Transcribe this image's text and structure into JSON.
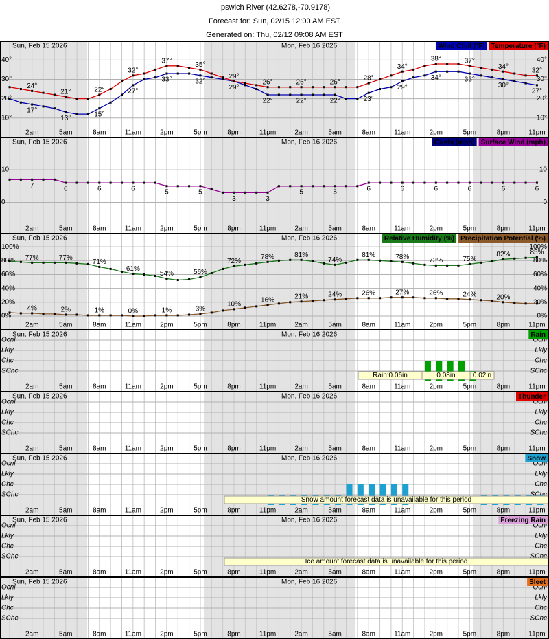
{
  "header": {
    "title": "Ipswich River (42.6278,-70.9178)",
    "forecast_for": "Forecast for: Sun, 02/15 12:00 AM EST",
    "generated_on": "Generated on: Thu, 02/12 09:08 AM EST"
  },
  "time_axis": {
    "days": [
      "Sun, Feb 15 2026",
      "Mon, Feb 16 2026"
    ],
    "categories": [
      null,
      null,
      "2am",
      null,
      null,
      "5am",
      null,
      null,
      "8am",
      null,
      null,
      "11am",
      null,
      null,
      "2pm",
      null,
      null,
      "5pm",
      null,
      null,
      "8pm",
      null,
      null,
      "11pm",
      null,
      null,
      "2am",
      null,
      null,
      "5am",
      null,
      null,
      "8am",
      null,
      null,
      "11am",
      null,
      null,
      "2pm",
      null,
      null,
      "5pm",
      null,
      null,
      "8pm",
      null,
      null,
      "11pm"
    ]
  },
  "chart_data": [
    {
      "type": "line",
      "ylim": [
        6,
        49
      ],
      "yticks": [
        {
          "value": 10,
          "label": "10°"
        },
        {
          "value": 20,
          "label": "20°"
        },
        {
          "value": 30,
          "label": "30°"
        },
        {
          "value": 40,
          "label": "40°"
        }
      ],
      "series": [
        {
          "name": "Wind Chill (°F)",
          "color": "#0000b4",
          "values": [
            20,
            18,
            17,
            16,
            15,
            13,
            12,
            12,
            15,
            18,
            22,
            27,
            30,
            31,
            33,
            33,
            33,
            32,
            31,
            30,
            29,
            27,
            25,
            22,
            22,
            22,
            22,
            22,
            22,
            22,
            20,
            20,
            23,
            25,
            26,
            29,
            31,
            32,
            34,
            34,
            34,
            33,
            32,
            31,
            30,
            29,
            28,
            27
          ],
          "value_labels": [
            null,
            null,
            "17°",
            null,
            null,
            "13°",
            null,
            null,
            "15°",
            null,
            null,
            "27°",
            null,
            null,
            "33°",
            null,
            null,
            "32°",
            null,
            null,
            "29°",
            null,
            null,
            "22°",
            null,
            null,
            "22°",
            null,
            null,
            "22°",
            null,
            null,
            "23°",
            null,
            null,
            "29°",
            null,
            null,
            "34°",
            null,
            null,
            "33°",
            null,
            null,
            "30°",
            null,
            null,
            "27°"
          ]
        },
        {
          "name": "Temperature (°F)",
          "color": "#e00000",
          "values": [
            26,
            25,
            24,
            23,
            22,
            21,
            20,
            20,
            22,
            25,
            29,
            32,
            33,
            35,
            37,
            37,
            36,
            35,
            33,
            31,
            29,
            28,
            27,
            26,
            26,
            26,
            26,
            26,
            26,
            26,
            26,
            26,
            28,
            30,
            32,
            34,
            35,
            37,
            38,
            38,
            38,
            37,
            36,
            35,
            34,
            33,
            32,
            32
          ],
          "value_labels": [
            null,
            null,
            "24°",
            null,
            null,
            "21°",
            null,
            null,
            "22°",
            null,
            null,
            "32°",
            null,
            null,
            "37°",
            null,
            null,
            "35°",
            null,
            null,
            "29°",
            null,
            null,
            "26°",
            null,
            null,
            "26°",
            null,
            null,
            "26°",
            null,
            null,
            "28°",
            null,
            null,
            "34°",
            null,
            null,
            "38°",
            null,
            null,
            "37°",
            null,
            null,
            "34°",
            null,
            null,
            "32°"
          ]
        }
      ]
    },
    {
      "type": "line",
      "ylim": [
        -6,
        19.5
      ],
      "yticks": [
        0,
        10
      ],
      "series": [
        {
          "name": "Gusts (mph)",
          "color": "#000080",
          "values": [
            null,
            null,
            null,
            null,
            null,
            null,
            null,
            null,
            null,
            null,
            null,
            null,
            null,
            null,
            null,
            null,
            null,
            null,
            null,
            null,
            null,
            null,
            null,
            null,
            null,
            null,
            null,
            null,
            null,
            null,
            null,
            null,
            null,
            null,
            null,
            null,
            null,
            null,
            null,
            null,
            null,
            null,
            null,
            null,
            null,
            null,
            null,
            null
          ]
        },
        {
          "name": "Surface Wind (mph)",
          "color": "#990099",
          "values": [
            7,
            7,
            7,
            7,
            7,
            6,
            6,
            6,
            6,
            6,
            6,
            6,
            6,
            6,
            5,
            5,
            5,
            5,
            4,
            3,
            3,
            3,
            3,
            3,
            5,
            5,
            5,
            5,
            5,
            5,
            5,
            5,
            6,
            6,
            6,
            6,
            6,
            6,
            6,
            6,
            6,
            6,
            6,
            6,
            6,
            6,
            6,
            6
          ],
          "value_labels": [
            null,
            null,
            "7",
            null,
            null,
            "6",
            null,
            null,
            "6",
            null,
            null,
            "6",
            null,
            null,
            "5",
            null,
            null,
            "5",
            null,
            null,
            "3",
            null,
            null,
            "3",
            null,
            null,
            "5",
            null,
            null,
            "5",
            null,
            null,
            "6",
            null,
            null,
            "6",
            null,
            null,
            "6",
            null,
            null,
            "6",
            null,
            null,
            "6",
            null,
            null,
            "6"
          ]
        }
      ]
    },
    {
      "type": "line",
      "ylim": [
        -3,
        117
      ],
      "yticks": [
        {
          "value": 0,
          "label": "0%"
        },
        {
          "value": 20,
          "label": "20%"
        },
        {
          "value": 40,
          "label": "40%"
        },
        {
          "value": 60,
          "label": "60%"
        },
        {
          "value": 80,
          "label": "80%"
        },
        {
          "value": 100,
          "label": "100%"
        }
      ],
      "series": [
        {
          "name": "Relative Humidity (%)",
          "color": "#1a7a1a",
          "values": [
            79,
            78,
            77,
            77,
            77,
            77,
            76,
            75,
            71,
            68,
            64,
            61,
            60,
            58,
            54,
            52,
            53,
            56,
            62,
            68,
            72,
            74,
            76,
            78,
            80,
            81,
            81,
            79,
            76,
            74,
            77,
            81,
            81,
            80,
            79,
            78,
            76,
            74,
            73,
            73,
            73,
            75,
            77,
            79,
            82,
            83,
            84,
            85
          ],
          "value_labels": [
            null,
            null,
            "77%",
            null,
            null,
            "77%",
            null,
            null,
            "71%",
            null,
            null,
            "61%",
            null,
            null,
            "54%",
            null,
            null,
            "56%",
            null,
            null,
            "72%",
            null,
            null,
            "78%",
            null,
            null,
            "81%",
            null,
            null,
            "74%",
            null,
            null,
            "81%",
            null,
            null,
            "78%",
            null,
            null,
            "73%",
            null,
            null,
            "75%",
            null,
            null,
            "82%",
            null,
            null,
            "85%"
          ]
        },
        {
          "name": "Precipitation Potential (%)",
          "color": "#8b5a2b",
          "values": [
            5,
            4,
            4,
            3,
            3,
            2,
            2,
            1,
            1,
            1,
            1,
            0,
            0,
            1,
            1,
            1,
            2,
            3,
            5,
            8,
            10,
            12,
            14,
            16,
            18,
            20,
            21,
            22,
            23,
            24,
            25,
            26,
            26,
            26,
            27,
            27,
            27,
            26,
            26,
            25,
            25,
            24,
            23,
            22,
            20,
            19,
            18,
            18
          ],
          "value_labels": [
            null,
            null,
            "4%",
            null,
            null,
            "2%",
            null,
            null,
            "1%",
            null,
            null,
            "0%",
            null,
            null,
            "1%",
            null,
            null,
            "3%",
            null,
            null,
            "10%",
            null,
            null,
            "16%",
            null,
            null,
            "21%",
            null,
            null,
            "24%",
            null,
            null,
            "26%",
            null,
            null,
            "27%",
            null,
            null,
            "26%",
            null,
            null,
            "24%",
            null,
            null,
            "20%",
            null,
            null,
            null
          ]
        }
      ]
    },
    {
      "type": "bar",
      "ylim": [
        0,
        5
      ],
      "yticks": [
        {
          "value": 1,
          "label": "SChc"
        },
        {
          "value": 2,
          "label": "Chc"
        },
        {
          "value": 3,
          "label": "Lkly"
        },
        {
          "value": 4,
          "label": "Ocnl"
        }
      ],
      "series": [
        {
          "name": "Rain",
          "color": "#00a000",
          "values": [
            0,
            0,
            0,
            0,
            0,
            0,
            0,
            0,
            0,
            0,
            0,
            0,
            0,
            0,
            0,
            0,
            0,
            0,
            0,
            0,
            0,
            0,
            0,
            0,
            0,
            0,
            0,
            0,
            0,
            0,
            0,
            0,
            0,
            0,
            0,
            0,
            0,
            2,
            2,
            2,
            2,
            1,
            0,
            0,
            0,
            0,
            0,
            0
          ]
        }
      ],
      "amount_labels": [
        "Rain:0.06in",
        "0.08in",
        "0.02in"
      ]
    },
    {
      "type": "bar",
      "ylim": [
        0,
        5
      ],
      "yticks": [
        {
          "value": 1,
          "label": "SChc"
        },
        {
          "value": 2,
          "label": "Chc"
        },
        {
          "value": 3,
          "label": "Lkly"
        },
        {
          "value": 4,
          "label": "Ocnl"
        }
      ],
      "series": [
        {
          "name": "Thunder",
          "color": "#e00000",
          "values": [
            0,
            0,
            0,
            0,
            0,
            0,
            0,
            0,
            0,
            0,
            0,
            0,
            0,
            0,
            0,
            0,
            0,
            0,
            0,
            0,
            0,
            0,
            0,
            0,
            0,
            0,
            0,
            0,
            0,
            0,
            0,
            0,
            0,
            0,
            0,
            0,
            0,
            0,
            0,
            0,
            0,
            0,
            0,
            0,
            0,
            0,
            0,
            0
          ]
        }
      ]
    },
    {
      "type": "bar",
      "ylim": [
        0,
        5
      ],
      "yticks": [
        {
          "value": 1,
          "label": "SChc"
        },
        {
          "value": 2,
          "label": "Chc"
        },
        {
          "value": 3,
          "label": "Lkly"
        },
        {
          "value": 4,
          "label": "Ocnl"
        }
      ],
      "series": [
        {
          "name": "Snow",
          "color": "#1ea0d0",
          "values": [
            0,
            0,
            0,
            0,
            0,
            0,
            0,
            0,
            0,
            0,
            0,
            0,
            0,
            0,
            0,
            0,
            0,
            0,
            0,
            0,
            0,
            0,
            0,
            1,
            1,
            1,
            1,
            1,
            1,
            1,
            2,
            2,
            2,
            2,
            2,
            2,
            0,
            0,
            0,
            0,
            0,
            0,
            1,
            1,
            1,
            1,
            1,
            1
          ]
        }
      ],
      "note": "Snow amount forecast data is unavailable for this period"
    },
    {
      "type": "bar",
      "ylim": [
        0,
        5
      ],
      "yticks": [
        {
          "value": 1,
          "label": "SChc"
        },
        {
          "value": 2,
          "label": "Chc"
        },
        {
          "value": 3,
          "label": "Lkly"
        },
        {
          "value": 4,
          "label": "Ocnl"
        }
      ],
      "series": [
        {
          "name": "Freezing Rain",
          "color": "#d9a0d9",
          "values": [
            0,
            0,
            0,
            0,
            0,
            0,
            0,
            0,
            0,
            0,
            0,
            0,
            0,
            0,
            0,
            0,
            0,
            0,
            0,
            0,
            0,
            0,
            0,
            0,
            0,
            0,
            0,
            0,
            0,
            0,
            0,
            0,
            0,
            0,
            0,
            0,
            0,
            0,
            0,
            0,
            0,
            0,
            0,
            0,
            0,
            0,
            0,
            0
          ]
        }
      ],
      "note": "Ice amount forecast data is unavailable for this period"
    },
    {
      "type": "bar",
      "ylim": [
        0,
        5
      ],
      "yticks": [
        {
          "value": 1,
          "label": "SChc"
        },
        {
          "value": 2,
          "label": "Chc"
        },
        {
          "value": 3,
          "label": "Lkly"
        },
        {
          "value": 4,
          "label": "Ocnl"
        }
      ],
      "series": [
        {
          "name": "Sleet",
          "color": "#e07020",
          "values": [
            0,
            0,
            0,
            0,
            0,
            0,
            0,
            0,
            0,
            0,
            0,
            0,
            0,
            0,
            0,
            0,
            0,
            0,
            0,
            0,
            0,
            0,
            0,
            0,
            0,
            0,
            0,
            0,
            0,
            0,
            0,
            0,
            0,
            0,
            0,
            0,
            0,
            0,
            0,
            0,
            0,
            0,
            0,
            0,
            0,
            0,
            0,
            0
          ]
        }
      ]
    }
  ]
}
